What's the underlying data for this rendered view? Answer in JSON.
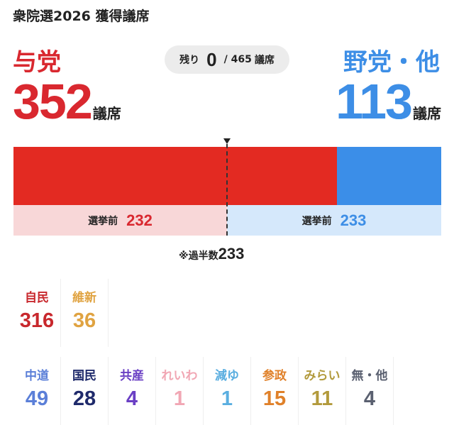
{
  "title": "衆院選2026 獲得議席",
  "ruling": {
    "label": "与党",
    "seats": "352",
    "unit": "議席",
    "color": "#d9282f"
  },
  "opposition": {
    "label": "野党・他",
    "seats": "113",
    "unit": "議席",
    "color": "#3d8ee6"
  },
  "remaining": {
    "label": "残り",
    "value": "0",
    "total": "/ 465",
    "unit": "議席"
  },
  "previous": {
    "ruling": {
      "label": "選挙前",
      "value": "232"
    },
    "opposition": {
      "label": "選挙前",
      "value": "233"
    }
  },
  "majority": {
    "label": "※過半数",
    "value": "233"
  },
  "chart_data": {
    "type": "bar",
    "total": 465,
    "majority": 233,
    "series": [
      {
        "name": "与党",
        "values": [
          352
        ],
        "previous": 232,
        "color": "#e32a22"
      },
      {
        "name": "野党・他",
        "values": [
          113
        ],
        "previous": 233,
        "color": "#3b8ee8"
      }
    ],
    "parties_ruling": [
      {
        "name": "自民",
        "seats": "316",
        "color": "#c8282d"
      },
      {
        "name": "維新",
        "seats": "36",
        "color": "#e0a341"
      }
    ],
    "parties_opposition": [
      {
        "name": "中道",
        "seats": "49",
        "color": "#5b7fd8"
      },
      {
        "name": "国民",
        "seats": "28",
        "color": "#1f2a6b"
      },
      {
        "name": "共産",
        "seats": "4",
        "color": "#6a3fc4"
      },
      {
        "name": "れいわ",
        "seats": "1",
        "color": "#f1a7b4"
      },
      {
        "name": "減ゆ",
        "seats": "1",
        "color": "#5aaee0"
      },
      {
        "name": "参政",
        "seats": "15",
        "color": "#e0812a"
      },
      {
        "name": "みらい",
        "seats": "11",
        "color": "#b29a3c"
      },
      {
        "name": "無・他",
        "seats": "4",
        "color": "#5a6070"
      }
    ]
  }
}
